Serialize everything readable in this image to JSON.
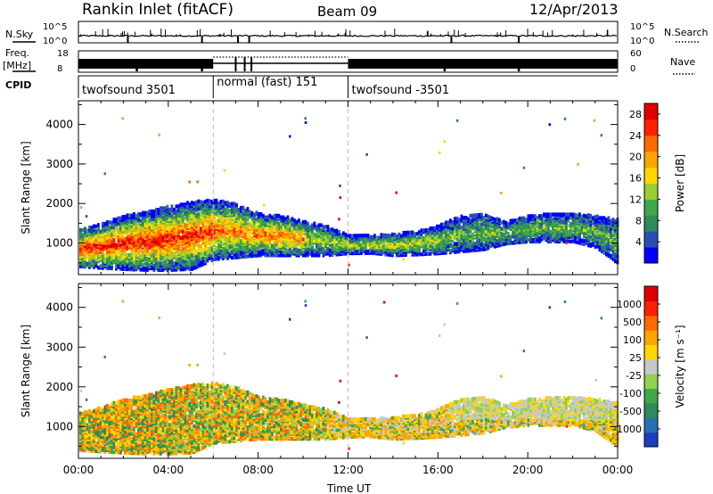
{
  "header": {
    "title": "Rankin Inlet (fitACF)",
    "beam": "Beam 09",
    "date": "12/Apr/2013"
  },
  "top_panels": {
    "nsky_label": "N.Sky",
    "nsky_ticks": [
      "10^5",
      "10^0"
    ],
    "nsearch_label": "N.Search",
    "nsearch_ticks": [
      "10^5",
      "10^0"
    ],
    "freq_label": "Freq.",
    "freq_unit": "[MHz]",
    "freq_ticks": [
      "18",
      "8"
    ],
    "nave_label": "Nave",
    "nave_ticks": [
      "60",
      "0"
    ],
    "cpid_label": "CPID",
    "cpid_segments": [
      {
        "label": "twofsound 3501",
        "start_hour": 0,
        "end_hour": 6
      },
      {
        "label": "normal (fast) 151",
        "start_hour": 6,
        "end_hour": 12
      },
      {
        "label": "twofsound -3501",
        "start_hour": 12,
        "end_hour": 24
      }
    ]
  },
  "chart_data": [
    {
      "type": "heatmap",
      "title": "",
      "quantity": "Power",
      "xlabel": "",
      "ylabel": "Slant Range [km]",
      "xlim_hours": [
        0,
        24
      ],
      "ylim": [
        200,
        4600
      ],
      "ytick_labels": [
        "1000",
        "2000",
        "3000",
        "4000"
      ],
      "yticks": [
        1000,
        2000,
        3000,
        4000
      ],
      "colorbar_label": "Power [dB]",
      "colorbar_ticks": [
        "4",
        "8",
        "12",
        "16",
        "20",
        "24",
        "28"
      ],
      "colorbar_range": [
        0,
        30
      ],
      "colorbar_colors": [
        "#0000ff",
        "#2a4fb4",
        "#2f8a5c",
        "#3fa84a",
        "#9acd32",
        "#ffd700",
        "#ffa500",
        "#ff6a00",
        "#ff2000",
        "#e00000"
      ],
      "echo_band": [
        {
          "hour": 0.0,
          "lo": 420,
          "hi": 1350
        },
        {
          "hour": 1.0,
          "lo": 380,
          "hi": 1500
        },
        {
          "hour": 2.0,
          "lo": 350,
          "hi": 1700
        },
        {
          "hour": 3.0,
          "lo": 330,
          "hi": 1800
        },
        {
          "hour": 4.0,
          "lo": 330,
          "hi": 1950
        },
        {
          "hour": 5.0,
          "lo": 350,
          "hi": 2050
        },
        {
          "hour": 6.0,
          "lo": 600,
          "hi": 2100
        },
        {
          "hour": 7.0,
          "lo": 650,
          "hi": 2000
        },
        {
          "hour": 8.0,
          "lo": 700,
          "hi": 1750
        },
        {
          "hour": 9.0,
          "lo": 700,
          "hi": 1700
        },
        {
          "hour": 10.0,
          "lo": 700,
          "hi": 1550
        },
        {
          "hour": 11.0,
          "lo": 700,
          "hi": 1450
        },
        {
          "hour": 12.0,
          "lo": 750,
          "hi": 1200
        },
        {
          "hour": 13.0,
          "lo": 760,
          "hi": 1200
        },
        {
          "hour": 14.0,
          "lo": 700,
          "hi": 1250
        },
        {
          "hour": 15.0,
          "lo": 720,
          "hi": 1300
        },
        {
          "hour": 16.0,
          "lo": 750,
          "hi": 1450
        },
        {
          "hour": 17.0,
          "lo": 800,
          "hi": 1700
        },
        {
          "hour": 18.0,
          "lo": 850,
          "hi": 1750
        },
        {
          "hour": 19.0,
          "lo": 1000,
          "hi": 1550
        },
        {
          "hour": 20.0,
          "lo": 1050,
          "hi": 1700
        },
        {
          "hour": 21.0,
          "lo": 1050,
          "hi": 1750
        },
        {
          "hour": 22.0,
          "lo": 1050,
          "hi": 1750
        },
        {
          "hour": 23.0,
          "lo": 900,
          "hi": 1700
        },
        {
          "hour": 24.0,
          "lo": 500,
          "hi": 1600
        }
      ]
    },
    {
      "type": "heatmap",
      "title": "",
      "quantity": "Velocity",
      "xlabel": "Time UT",
      "ylabel": "Slant Range [km]",
      "xlim_hours": [
        0,
        24
      ],
      "ylim": [
        200,
        4600
      ],
      "ytick_labels": [
        "1000",
        "2000",
        "3000",
        "4000"
      ],
      "yticks": [
        1000,
        2000,
        3000,
        4000
      ],
      "colorbar_label": "Velocity [m s⁻¹]",
      "colorbar_ticks": [
        "1000",
        "500",
        "100",
        "25",
        "-25",
        "-100",
        "-500",
        "-1000"
      ],
      "colorbar_colors": [
        "#1a3fbf",
        "#2a6fb4",
        "#2f8a5c",
        "#3fa84a",
        "#8fd14f",
        "#c8c8c8",
        "#ffd700",
        "#ffa500",
        "#ff6a00",
        "#ff2000",
        "#e00000"
      ],
      "xtick_labels": [
        "00:00",
        "04:00",
        "08:00",
        "12:00",
        "16:00",
        "20:00",
        "00:00"
      ],
      "xtick_hours": [
        0,
        4,
        8,
        12,
        16,
        20,
        24
      ]
    }
  ]
}
